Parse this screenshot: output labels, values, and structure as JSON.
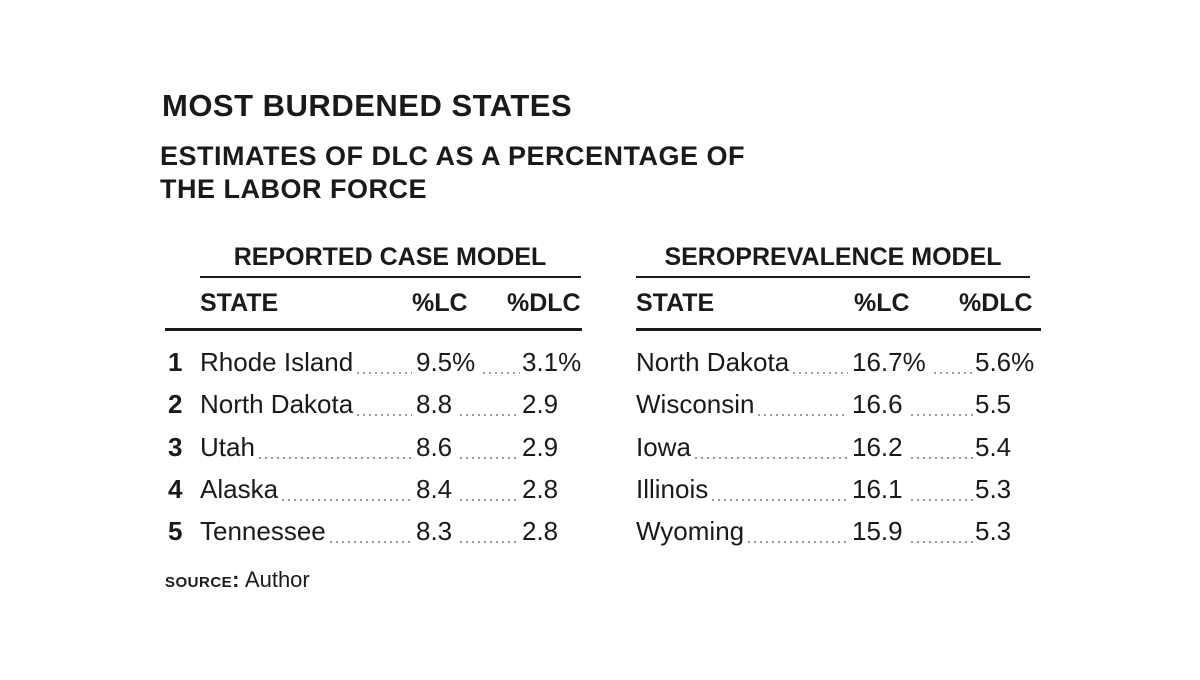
{
  "chart_data": {
    "type": "table",
    "title": "MOST BURDENED STATES",
    "subtitle_lines": [
      "ESTIMATES OF DLC AS A PERCENTAGE OF",
      "THE LABOR FORCE"
    ],
    "tables": [
      {
        "title": "REPORTED CASE MODEL",
        "columns": [
          "STATE",
          "%LC",
          "%DLC"
        ],
        "rows": [
          {
            "rank": "1",
            "state": "Rhode Island",
            "lc": "9.5%",
            "dlc": "3.1%"
          },
          {
            "rank": "2",
            "state": "North Dakota",
            "lc": "8.8",
            "dlc": "2.9"
          },
          {
            "rank": "3",
            "state": "Utah",
            "lc": "8.6",
            "dlc": "2.9"
          },
          {
            "rank": "4",
            "state": "Alaska",
            "lc": "8.4",
            "dlc": "2.8"
          },
          {
            "rank": "5",
            "state": "Tennessee",
            "lc": "8.3",
            "dlc": "2.8"
          }
        ]
      },
      {
        "title": "SEROPREVALENCE MODEL",
        "columns": [
          "STATE",
          "%LC",
          "%DLC"
        ],
        "rows": [
          {
            "state": "North Dakota",
            "lc": "16.7%",
            "dlc": "5.6%"
          },
          {
            "state": "Wisconsin",
            "lc": "16.6",
            "dlc": "5.5"
          },
          {
            "state": "Iowa",
            "lc": "16.2",
            "dlc": "5.4"
          },
          {
            "state": "Illinois",
            "lc": "16.1",
            "dlc": "5.3"
          },
          {
            "state": "Wyoming",
            "lc": "15.9",
            "dlc": "5.3"
          }
        ]
      }
    ],
    "source_label": "SOURCE:",
    "source_value": "Author"
  }
}
